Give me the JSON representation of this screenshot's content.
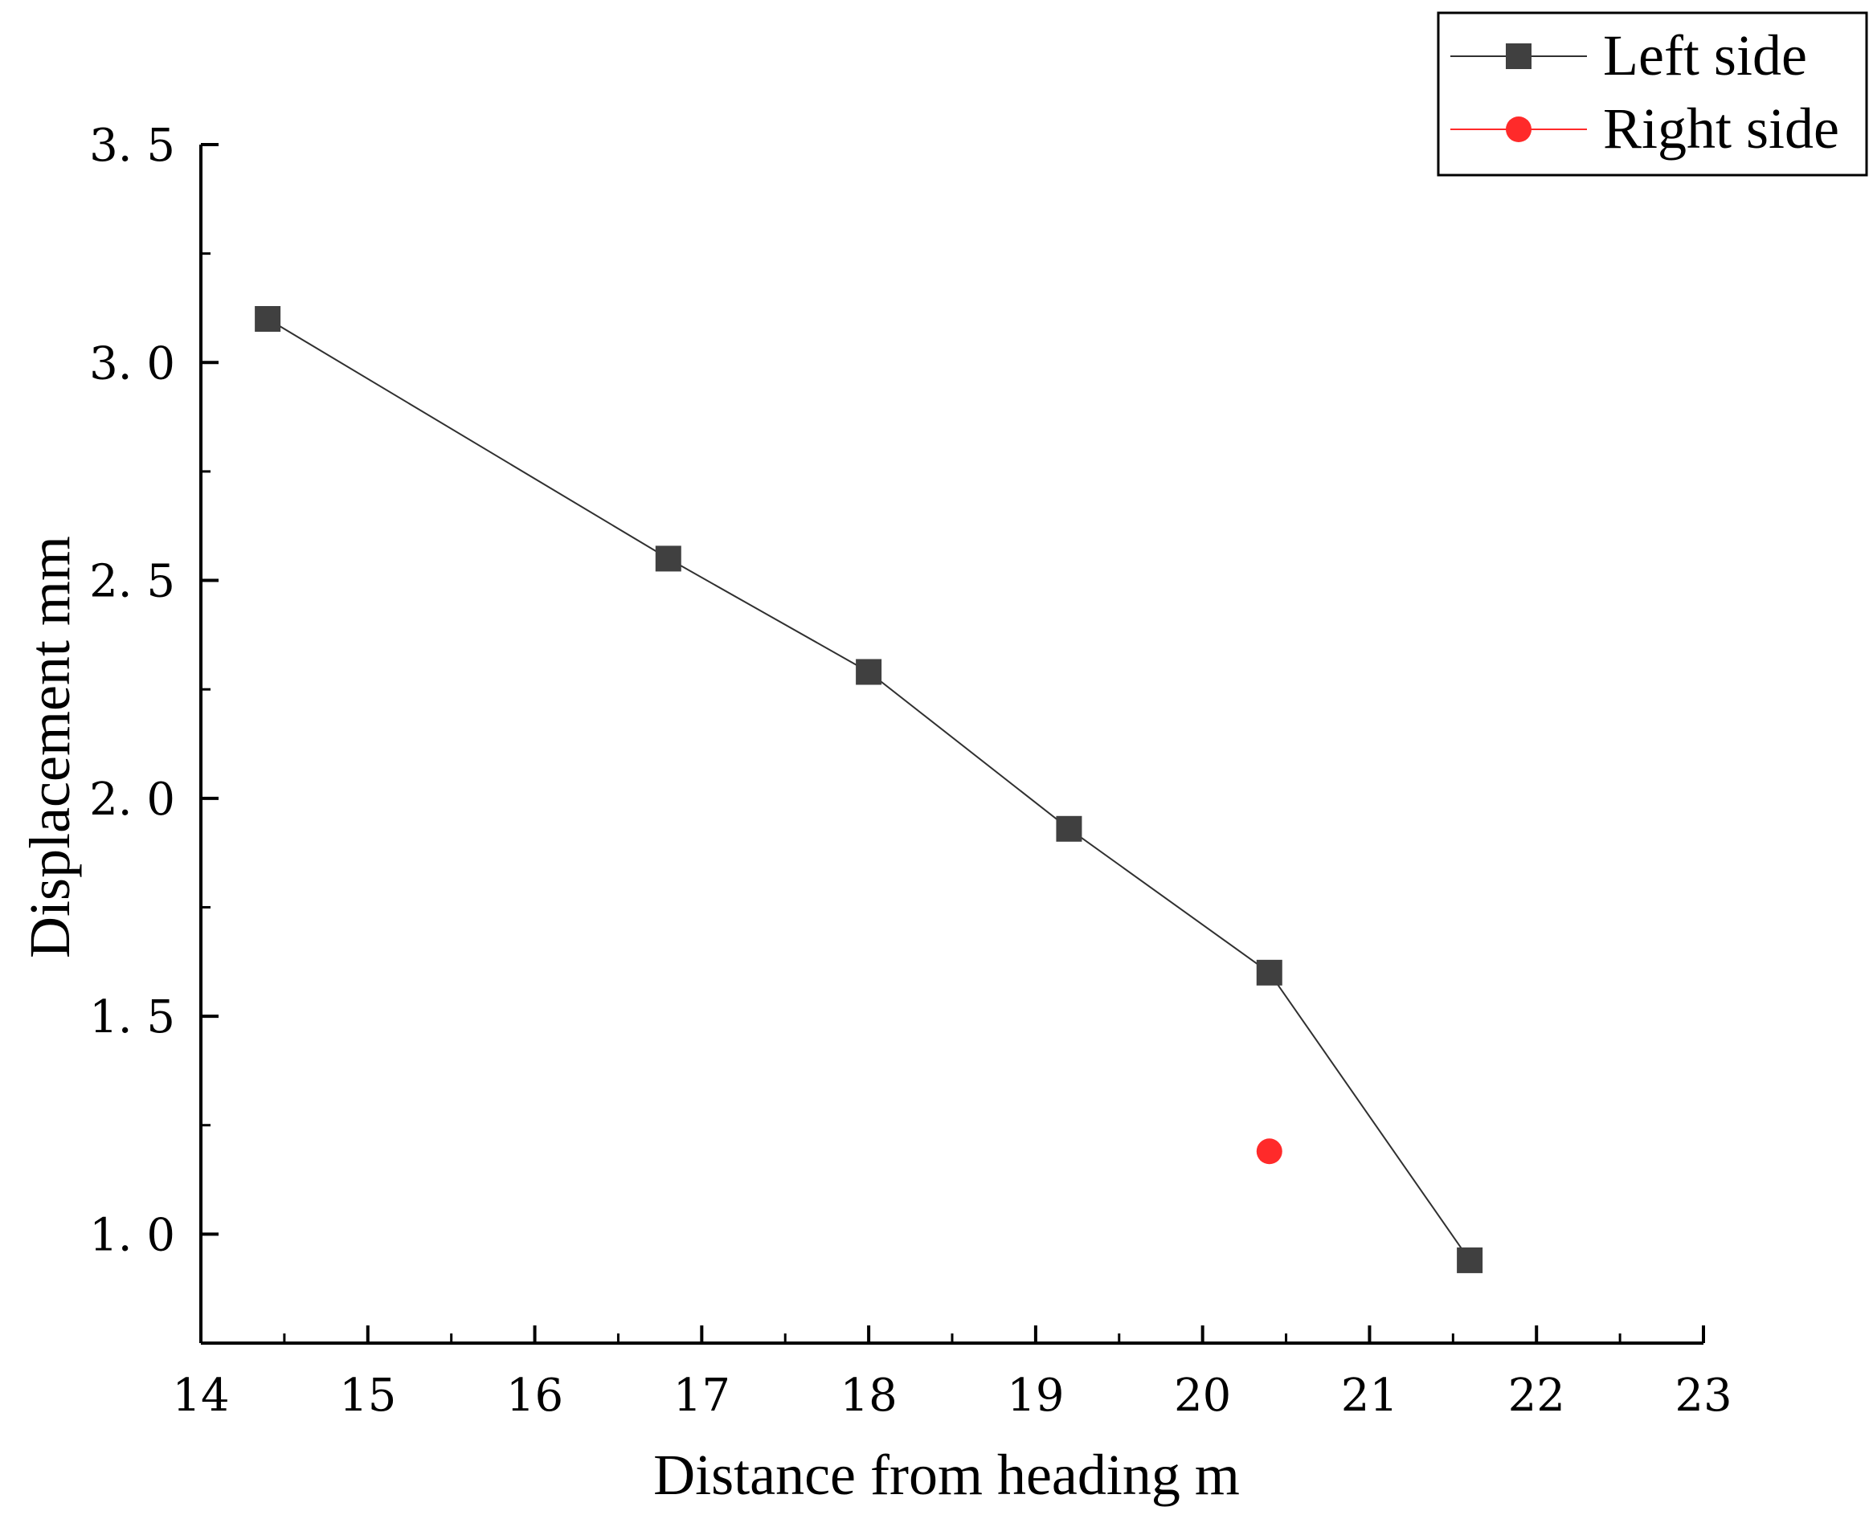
{
  "chart_data": {
    "type": "line",
    "xlabel": "Distance from heading m",
    "ylabel": "Displacement mm",
    "xlim": [
      14,
      23
    ],
    "ylim": [
      0.75,
      3.5
    ],
    "x_ticks": [
      "14",
      "15",
      "16",
      "17",
      "18",
      "19",
      "20",
      "21",
      "22",
      "23"
    ],
    "y_ticks": [
      "1. 0",
      "1. 5",
      "2. 0",
      "2. 5",
      "3. 0",
      "3. 5"
    ],
    "grid": false,
    "legend_position": "top-right",
    "series": [
      {
        "name": "Left side",
        "marker": "square",
        "line": true,
        "color": "#404040",
        "line_color": "#303030",
        "points": [
          {
            "x": 14.4,
            "y": 3.1
          },
          {
            "x": 16.8,
            "y": 2.55
          },
          {
            "x": 18.0,
            "y": 2.29
          },
          {
            "x": 19.2,
            "y": 1.93
          },
          {
            "x": 20.4,
            "y": 1.6
          },
          {
            "x": 21.6,
            "y": 0.94
          }
        ]
      },
      {
        "name": "Right side",
        "marker": "circle",
        "line": true,
        "color": "#ff2a2a",
        "line_color": "#ff2a2a",
        "points": [
          {
            "x": 20.4,
            "y": 1.19
          }
        ]
      }
    ]
  }
}
